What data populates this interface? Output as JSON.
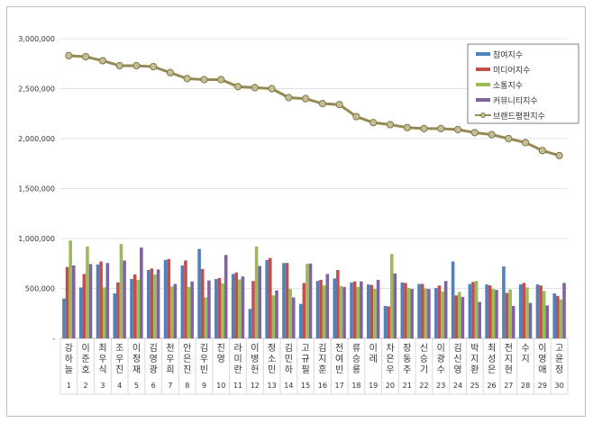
{
  "chart_data": {
    "type": "bar+line",
    "title": "",
    "xlabel": "",
    "ylabel": "",
    "ylim": [
      0,
      3000000
    ],
    "yticks": [
      0,
      500000,
      1000000,
      1500000,
      2000000,
      2500000,
      3000000
    ],
    "ytick_labels": [
      "-",
      "500,000",
      "1,000,000",
      "1,500,000",
      "2,000,000",
      "2,500,000",
      "3,000,000"
    ],
    "grid": "horizontal",
    "legend_position": "top-right",
    "categories": [
      "강하늘",
      "이준호",
      "최우식",
      "조우진",
      "이정재",
      "김영광",
      "천우희",
      "안은진",
      "김우빈",
      "진영",
      "라미란",
      "이병헌",
      "정소민",
      "김민하",
      "고규필",
      "김지훈",
      "전여빈",
      "류승룡",
      "이레",
      "차은우",
      "장동주",
      "신승기",
      "이광수",
      "김신영",
      "박지환",
      "최성은",
      "전지현",
      "수지",
      "이영애",
      "고윤정"
    ],
    "ranks": [
      "1",
      "2",
      "3",
      "4",
      "5",
      "6",
      "7",
      "8",
      "9",
      "10",
      "11",
      "12",
      "13",
      "14",
      "15",
      "16",
      "17",
      "18",
      "19",
      "20",
      "21",
      "22",
      "23",
      "24",
      "25",
      "26",
      "27",
      "28",
      "29",
      "30"
    ],
    "series": [
      {
        "name": "참여지수",
        "type": "bar",
        "color": "#4f81bd",
        "values": [
          400000,
          510000,
          740000,
          450000,
          595000,
          685000,
          785000,
          730000,
          895000,
          595000,
          645000,
          295000,
          785000,
          755000,
          345000,
          575000,
          600000,
          560000,
          540000,
          325000,
          560000,
          545000,
          505000,
          770000,
          545000,
          540000,
          720000,
          540000,
          540000,
          450000
        ]
      },
      {
        "name": "미디어지수",
        "type": "bar",
        "color": "#c0504d",
        "values": [
          715000,
          645000,
          770000,
          560000,
          640000,
          700000,
          795000,
          780000,
          695000,
          605000,
          660000,
          575000,
          805000,
          755000,
          555000,
          585000,
          685000,
          570000,
          535000,
          320000,
          555000,
          545000,
          530000,
          430000,
          565000,
          530000,
          455000,
          555000,
          530000,
          425000
        ]
      },
      {
        "name": "소통지수",
        "type": "bar",
        "color": "#9bbb59",
        "values": [
          980000,
          920000,
          510000,
          945000,
          585000,
          640000,
          520000,
          515000,
          410000,
          550000,
          590000,
          920000,
          430000,
          495000,
          745000,
          530000,
          525000,
          515000,
          495000,
          845000,
          505000,
          500000,
          470000,
          465000,
          575000,
          495000,
          490000,
          510000,
          475000,
          390000
        ]
      },
      {
        "name": "커뮤니티지수",
        "type": "bar",
        "color": "#8064a2",
        "values": [
          730000,
          745000,
          755000,
          780000,
          910000,
          690000,
          545000,
          570000,
          580000,
          835000,
          620000,
          725000,
          480000,
          410000,
          750000,
          645000,
          515000,
          570000,
          585000,
          650000,
          495000,
          495000,
          575000,
          415000,
          365000,
          485000,
          325000,
          355000,
          330000,
          555000
        ]
      },
      {
        "name": "브랜드평판지수",
        "type": "line",
        "color": "#948a54",
        "values": [
          2830000,
          2820000,
          2780000,
          2730000,
          2730000,
          2720000,
          2660000,
          2600000,
          2590000,
          2590000,
          2520000,
          2510000,
          2500000,
          2410000,
          2400000,
          2350000,
          2340000,
          2220000,
          2160000,
          2140000,
          2110000,
          2100000,
          2100000,
          2090000,
          2060000,
          2040000,
          2000000,
          1960000,
          1880000,
          1830000
        ]
      }
    ]
  }
}
